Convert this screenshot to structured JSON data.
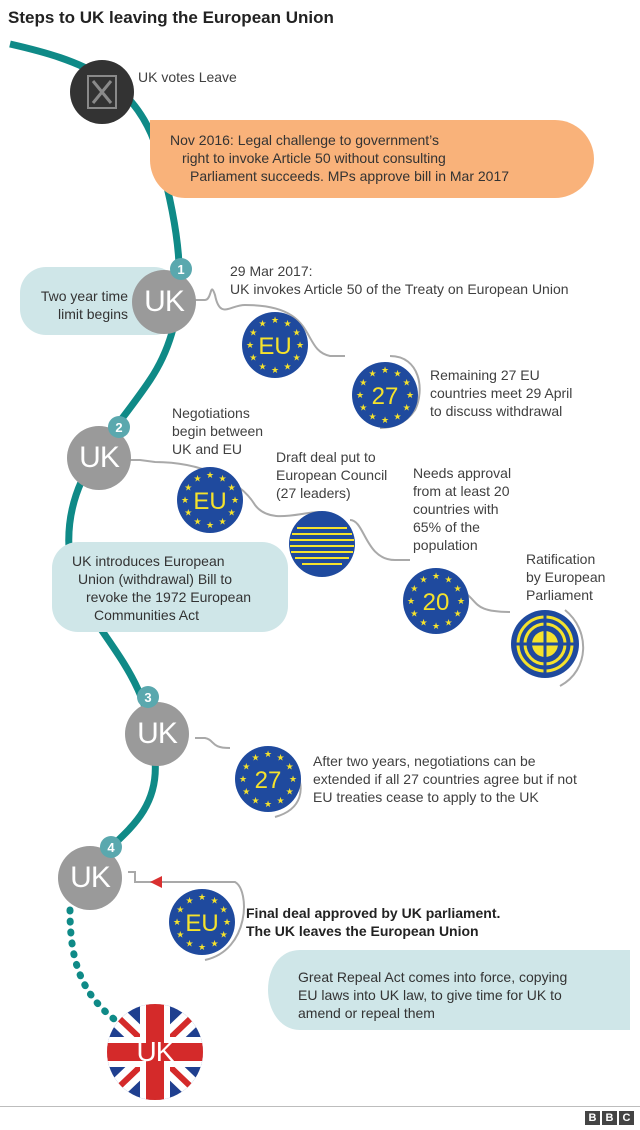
{
  "title": "Steps to UK leaving the European Union",
  "colors": {
    "path_teal": "#0f8a87",
    "connector_gray": "#a9a9a9",
    "orange": "#f9b27a",
    "light_teal": "#cfe6e8",
    "eu_blue": "#1f4a9e",
    "eu_yellow": "#f5e22c",
    "uk_gray": "#9a9a9a",
    "step_badge": "#5aa8ae",
    "arrow_red": "#d93030"
  },
  "events": {
    "vote_label": "UK votes Leave",
    "legal_challenge": [
      "Nov 2016: Legal challenge to government’s",
      "right to invoke Article 50 without consulting",
      "Parliament succeeds. MPs approve bill in Mar 2017"
    ],
    "two_year": [
      "Two year time",
      "limit begins"
    ],
    "article50": [
      "29 Mar 2017:",
      "UK invokes Article 50 of the Treaty on European Union"
    ],
    "remaining27": [
      "Remaining 27 EU",
      "countries meet 29 April",
      "to discuss withdrawal"
    ],
    "negotiations": [
      "Negotiations",
      "begin between",
      "UK and EU"
    ],
    "draft_deal": [
      "Draft deal put to",
      "European Council",
      "(27 leaders)"
    ],
    "approval": [
      "Needs approval",
      "from at least 20",
      "countries with",
      "65% of the",
      "population"
    ],
    "ratification": [
      "Ratification",
      "by European",
      "Parliament"
    ],
    "withdrawal_bill": [
      "UK introduces European",
      "Union (withdrawal) Bill to",
      "revoke the 1972 European",
      "Communities Act"
    ],
    "extension": [
      "After two years, negotiations can be",
      "extended if all 27 countries agree but if not",
      "EU treaties cease to apply to the UK"
    ],
    "final_deal": [
      "Final deal approved by UK parliament.",
      "The UK leaves the European Union"
    ],
    "repeal": [
      "Great Repeal Act comes into force, copying",
      "EU laws into UK law, to give time for UK to",
      "amend or repeal them"
    ]
  },
  "circles": {
    "uk": "UK",
    "eu": "EU",
    "count_27": "27",
    "count_20": "20"
  },
  "steps": [
    "1",
    "2",
    "3",
    "4"
  ],
  "logo": [
    "B",
    "B",
    "C"
  ]
}
